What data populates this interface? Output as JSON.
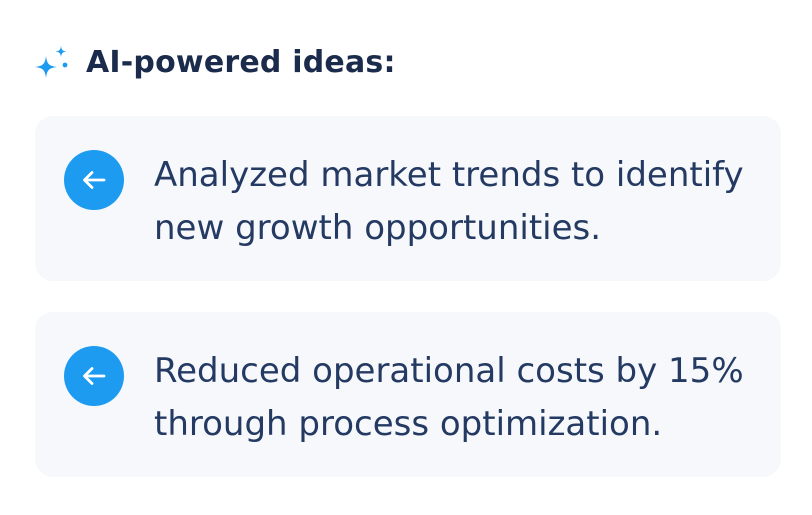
{
  "header": {
    "icon": "sparkle-icon",
    "title": "AI-powered ideas:"
  },
  "colors": {
    "accent": "#1d9bf0",
    "title": "#1b2b4b",
    "text": "#243a63",
    "card_bg": "#f6f8fb"
  },
  "ideas": [
    {
      "icon": "arrow-left-icon",
      "text": "Analyzed market trends to identify new growth opportunities."
    },
    {
      "icon": "arrow-left-icon",
      "text": "Reduced operational costs by 15% through process optimization."
    }
  ]
}
